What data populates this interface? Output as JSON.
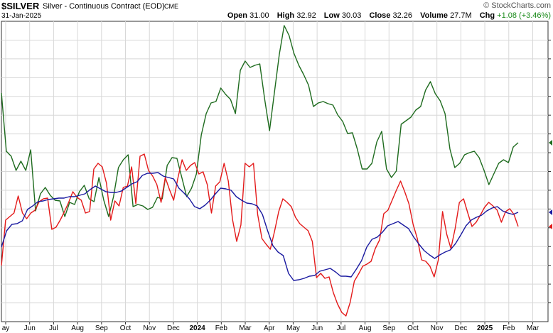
{
  "header": {
    "symbol": "$SILVER",
    "name": "Silver - Continuous Contract (EOD)",
    "exchange": "CME",
    "date": "31-Jan-2025",
    "brand": "© StockCharts.com",
    "open_label": "Open",
    "open": "31.00",
    "high_label": "High",
    "high": "32.92",
    "low_label": "Low",
    "low": "30.03",
    "close_label": "Close",
    "close": "32.26",
    "volume_label": "Volume",
    "volume": "27.7M",
    "chg_label": "Chg",
    "chg": "+1.08 (+3.46%)"
  },
  "colors": {
    "green": "#1e6b1e",
    "red": "#e31a1a",
    "blue": "#1a1aa0",
    "grid": "#d8d8d8",
    "axis": "#333333"
  },
  "chart_data": {
    "type": "line",
    "x_tick_labels": [
      "ay",
      "Jun",
      "Jul",
      "Aug",
      "Sep",
      "Oct",
      "Nov",
      "Dec",
      "2024",
      "Feb",
      "Mar",
      "Apr",
      "May",
      "Jun",
      "Jul",
      "Aug",
      "Sep",
      "Oct",
      "Nov",
      "Dec",
      "2025",
      "Feb",
      "Mar"
    ],
    "bold_tick_labels": [
      "2024",
      "2025"
    ],
    "y_axis": "unlabeled",
    "grid": true,
    "series": [
      {
        "color": "green",
        "values": [
          131,
          213,
          220,
          240,
          227,
          240,
          211,
          297,
          273,
          264,
          275,
          282,
          283,
          305,
          285,
          288,
          270,
          261,
          280,
          284,
          250,
          282,
          305,
          277,
          236,
          225,
          218,
          291,
          288,
          290,
          295,
          292,
          278,
          280,
          233,
          222,
          223,
          250,
          277,
          265,
          245,
          190,
          160,
          145,
          143,
          124,
          133,
          140,
          160,
          99,
          86,
          95,
          92,
          90,
          140,
          184,
          130,
          77,
          36,
          50,
          75,
          92,
          105,
          120,
          150,
          145,
          143,
          146,
          148,
          162,
          171,
          188,
          187,
          210,
          238,
          238,
          230,
          200,
          185,
          238,
          250,
          241,
          175,
          170,
          165,
          155,
          150,
          127,
          115,
          132,
          142,
          160,
          210,
          236,
          230,
          218,
          215,
          213,
          222,
          240,
          260,
          245,
          230,
          225,
          229,
          207,
          201
        ]
      },
      {
        "color": "red",
        "values": [
          374,
          310,
          305,
          300,
          276,
          300,
          308,
          300,
          296,
          284,
          280,
          279,
          323,
          320,
          310,
          298,
          285,
          270,
          278,
          282,
          300,
          298,
          238,
          230,
          235,
          258,
          310,
          283,
          290,
          264,
          262,
          235,
          287,
          220,
          217,
          240,
          248,
          260,
          285,
          250,
          267,
          282,
          251,
          225,
          240,
          233,
          229,
          245,
          242,
          260,
          300,
          262,
          256,
          230,
          255,
          309,
          340,
          317,
          230,
          235,
          230,
          302,
          336,
          344,
          351,
          326,
          298,
          280,
          285,
          291,
          306,
          315,
          320,
          325,
          340,
          391,
          385,
          392,
          390,
          412,
          428,
          440,
          445,
          426,
          396,
          386,
          375,
          372,
          368,
          350,
          338,
          301,
          296,
          282,
          268,
          255,
          270,
          287,
          316,
          336,
          366,
          368,
          375,
          390,
          366,
          298,
          330,
          350,
          322,
          285,
          280,
          300,
          319,
          313,
          303,
          292,
          285,
          290,
          296,
          313,
          298,
          294,
          302,
          319
        ]
      },
      {
        "color": "blue",
        "values": [
          348,
          325,
          316,
          315,
          311,
          295,
          290,
          284,
          283,
          281,
          280,
          279,
          279,
          277,
          277,
          275,
          273,
          267,
          262,
          266,
          270,
          271,
          271,
          269,
          264,
          259,
          256,
          247,
          244,
          244,
          243,
          248,
          250,
          252,
          265,
          272,
          280,
          291,
          294,
          289,
          282,
          273,
          265,
          266,
          268,
          277,
          282,
          286,
          287,
          290,
          302,
          325,
          346,
          355,
          360,
          385,
          395,
          394,
          392,
          389,
          388,
          382,
          380,
          378,
          383,
          389,
          389,
          390,
          379,
          367,
          348,
          337,
          334,
          327,
          318,
          315,
          312,
          317,
          322,
          334,
          344,
          353,
          359,
          364,
          359,
          355,
          352,
          343,
          331,
          318,
          310,
          306,
          303,
          297,
          293,
          291,
          297,
          300,
          302,
          299
        ]
      }
    ]
  }
}
